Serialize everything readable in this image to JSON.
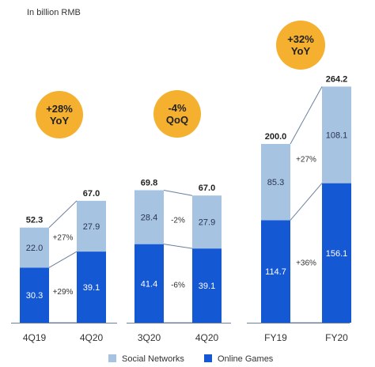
{
  "unit_label": "In billion RMB",
  "colors": {
    "social": "#a6c3e2",
    "games": "#1458d4",
    "badge": "#f4b02e",
    "axis": "#6b7fa0"
  },
  "legend": [
    {
      "label": "Social Networks",
      "color": "#a6c3e2"
    },
    {
      "label": "Online Games",
      "color": "#1458d4"
    }
  ],
  "chart_data": [
    {
      "type": "bar",
      "stacked": true,
      "categories": [
        "4Q19",
        "4Q20"
      ],
      "series": [
        {
          "name": "Online Games",
          "values": [
            30.3,
            39.1
          ]
        },
        {
          "name": "Social Networks",
          "values": [
            22.0,
            27.9
          ]
        }
      ],
      "totals": [
        "52.3",
        "67.0"
      ],
      "growth": {
        "Social Networks": "+27%",
        "Online Games": "+29%"
      },
      "badge": {
        "value": "+28%",
        "label": "YoY"
      }
    },
    {
      "type": "bar",
      "stacked": true,
      "categories": [
        "3Q20",
        "4Q20"
      ],
      "series": [
        {
          "name": "Online Games",
          "values": [
            41.4,
            39.1
          ]
        },
        {
          "name": "Social Networks",
          "values": [
            28.4,
            27.9
          ]
        }
      ],
      "totals": [
        "69.8",
        "67.0"
      ],
      "growth": {
        "Social Networks": "-2%",
        "Online Games": "-6%"
      },
      "badge": {
        "value": "-4%",
        "label": "QoQ"
      }
    },
    {
      "type": "bar",
      "stacked": true,
      "categories": [
        "FY19",
        "FY20"
      ],
      "series": [
        {
          "name": "Online Games",
          "values": [
            114.7,
            156.1
          ]
        },
        {
          "name": "Social Networks",
          "values": [
            85.3,
            108.1
          ]
        }
      ],
      "totals": [
        "200.0",
        "264.2"
      ],
      "growth": {
        "Social Networks": "+27%",
        "Online Games": "+36%"
      },
      "badge": {
        "value": "+32%",
        "label": "YoY"
      }
    }
  ]
}
